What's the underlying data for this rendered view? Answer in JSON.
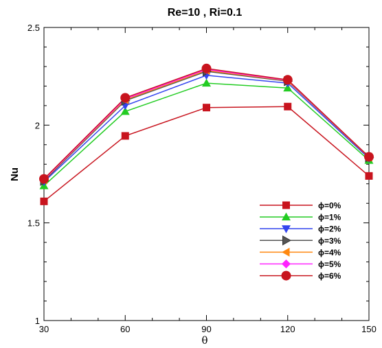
{
  "chart_data": {
    "type": "line",
    "title": "Re=10 , Ri=0.1",
    "xlabel": "θ",
    "ylabel": "Nu",
    "xlim": [
      30,
      150
    ],
    "ylim": [
      1,
      2.5
    ],
    "xticks": [
      "30",
      "60",
      "90",
      "120",
      "150"
    ],
    "yticks": [
      "1",
      "1.5",
      "2",
      "2.5"
    ],
    "x": [
      30,
      60,
      90,
      120,
      150
    ],
    "grid": false,
    "legend_position": "bottom-right",
    "series": [
      {
        "name": "ϕ=0%",
        "color": "#c8141e",
        "marker": "square",
        "values": [
          1.61,
          1.945,
          2.09,
          2.095,
          1.74
        ]
      },
      {
        "name": "ϕ=1%",
        "color": "#22cc22",
        "marker": "triangle-up",
        "values": [
          1.69,
          2.07,
          2.215,
          2.19,
          1.82
        ]
      },
      {
        "name": "ϕ=2%",
        "color": "#3344ee",
        "marker": "triangle-down",
        "values": [
          1.71,
          2.1,
          2.255,
          2.215,
          1.83
        ]
      },
      {
        "name": "ϕ=3%",
        "color": "#555555",
        "marker": "triangle-right",
        "values": [
          1.715,
          2.125,
          2.275,
          2.225,
          1.835
        ]
      },
      {
        "name": "ϕ=4%",
        "color": "#ff8811",
        "marker": "triangle-left",
        "values": [
          1.72,
          2.13,
          2.28,
          2.228,
          1.836
        ]
      },
      {
        "name": "ϕ=5%",
        "color": "#ff22ff",
        "marker": "diamond",
        "values": [
          1.722,
          2.135,
          2.285,
          2.23,
          1.837
        ]
      },
      {
        "name": "ϕ=6%",
        "color": "#c8141e",
        "marker": "circle",
        "values": [
          1.725,
          2.14,
          2.29,
          2.232,
          1.838
        ]
      }
    ]
  }
}
